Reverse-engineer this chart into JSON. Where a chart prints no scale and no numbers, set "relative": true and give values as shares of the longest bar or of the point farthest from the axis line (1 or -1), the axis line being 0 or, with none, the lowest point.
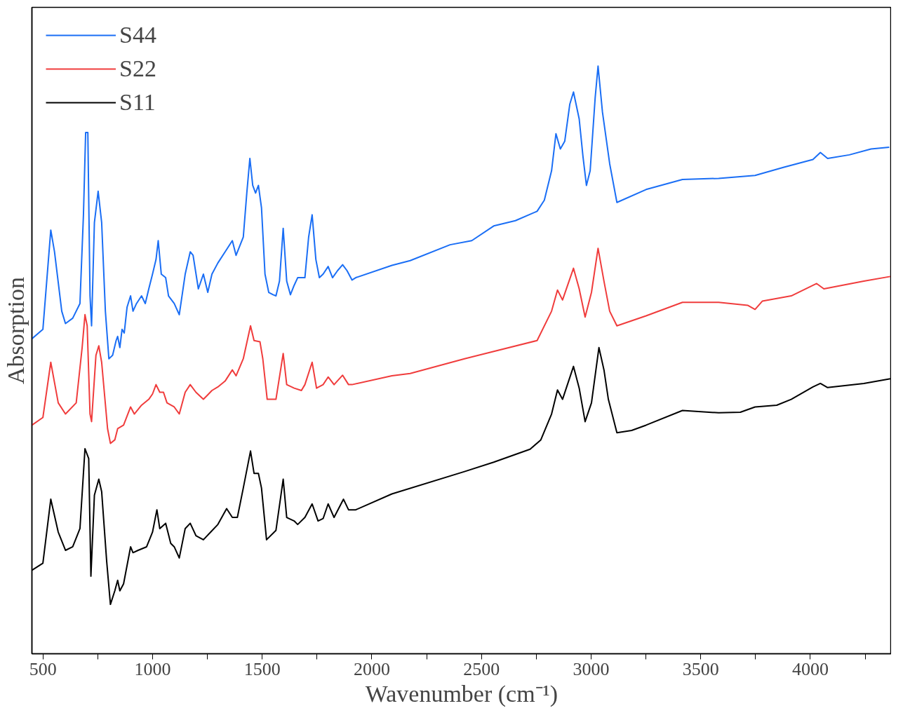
{
  "chart_data": {
    "type": "line",
    "xlabel": "Wavenumber (cm⁻¹)",
    "ylabel": "Absorption",
    "relative": true,
    "legend": "top left",
    "grid": false,
    "xlim": [
      450,
      4370
    ],
    "xticks": [
      500,
      {
        "value": 750,
        "label": null
      },
      1000,
      {
        "value": 1250,
        "label": null
      },
      1500,
      {
        "value": 1750,
        "label": null
      },
      2000,
      {
        "value": 2250,
        "label": null
      },
      2500,
      {
        "value": 2750,
        "label": null
      },
      3000,
      {
        "value": 3250,
        "label": null
      },
      3500,
      {
        "value": 3750,
        "label": null
      },
      4000,
      {
        "value": 4250,
        "label": null
      }
    ],
    "series": [
      {
        "name": "S44",
        "color": "#1a6ef5",
        "x": [
          450,
          500,
          536,
          553,
          586,
          603,
          636,
          669,
          685,
          695,
          705,
          715,
          722,
          735,
          752,
          768,
          785,
          801,
          818,
          834,
          841,
          851,
          861,
          871,
          884,
          900,
          911,
          927,
          950,
          967,
          983,
          1000,
          1016,
          1026,
          1040,
          1060,
          1073,
          1099,
          1122,
          1149,
          1172,
          1185,
          1209,
          1232,
          1252,
          1271,
          1298,
          1331,
          1364,
          1381,
          1414,
          1430,
          1444,
          1457,
          1470,
          1483,
          1497,
          1513,
          1530,
          1550,
          1563,
          1579,
          1596,
          1612,
          1629,
          1646,
          1662,
          1695,
          1712,
          1728,
          1745,
          1761,
          1778,
          1801,
          1821,
          1844,
          1867,
          1887,
          1910,
          1927,
          2092,
          2175,
          2357,
          2456,
          2556,
          2655,
          2754,
          2787,
          2820,
          2840,
          2860,
          2880,
          2903,
          2920,
          2946,
          2963,
          2979,
          2996,
          3019,
          3032,
          3052,
          3085,
          3118,
          3251,
          3417,
          3582,
          3748,
          3880,
          4012,
          4046,
          4079,
          4178,
          4277,
          4360
        ],
        "values": [
          0.536,
          0.552,
          0.721,
          0.684,
          0.583,
          0.562,
          0.571,
          0.596,
          0.747,
          0.887,
          0.887,
          0.609,
          0.558,
          0.734,
          0.787,
          0.734,
          0.583,
          0.502,
          0.508,
          0.533,
          0.54,
          0.521,
          0.552,
          0.546,
          0.59,
          0.609,
          0.583,
          0.596,
          0.609,
          0.596,
          0.621,
          0.646,
          0.671,
          0.703,
          0.646,
          0.64,
          0.609,
          0.596,
          0.577,
          0.646,
          0.684,
          0.678,
          0.621,
          0.646,
          0.615,
          0.646,
          0.665,
          0.684,
          0.703,
          0.678,
          0.709,
          0.784,
          0.843,
          0.797,
          0.784,
          0.797,
          0.759,
          0.646,
          0.615,
          0.611,
          0.609,
          0.634,
          0.724,
          0.634,
          0.611,
          0.627,
          0.64,
          0.64,
          0.709,
          0.747,
          0.671,
          0.64,
          0.646,
          0.659,
          0.64,
          0.652,
          0.662,
          0.652,
          0.636,
          0.64,
          0.661,
          0.669,
          0.696,
          0.703,
          0.728,
          0.737,
          0.753,
          0.772,
          0.822,
          0.885,
          0.859,
          0.872,
          0.935,
          0.956,
          0.91,
          0.847,
          0.797,
          0.822,
          0.947,
          1.0,
          0.922,
          0.834,
          0.768,
          0.79,
          0.807,
          0.809,
          0.814,
          0.828,
          0.841,
          0.853,
          0.843,
          0.849,
          0.859,
          0.862
        ]
      },
      {
        "name": "S22",
        "color": "#f03c3c",
        "x": [
          450,
          500,
          536,
          570,
          603,
          652,
          679,
          692,
          702,
          715,
          722,
          742,
          755,
          768,
          795,
          808,
          828,
          841,
          868,
          900,
          917,
          950,
          983,
          1000,
          1016,
          1033,
          1050,
          1066,
          1099,
          1122,
          1149,
          1172,
          1198,
          1232,
          1248,
          1271,
          1298,
          1331,
          1364,
          1381,
          1414,
          1447,
          1463,
          1490,
          1503,
          1523,
          1563,
          1596,
          1612,
          1646,
          1679,
          1695,
          1728,
          1748,
          1778,
          1801,
          1828,
          1867,
          1894,
          1910,
          2092,
          2175,
          2423,
          2754,
          2820,
          2847,
          2870,
          2920,
          2946,
          2973,
          3002,
          3032,
          3059,
          3085,
          3118,
          3251,
          3417,
          3582,
          3714,
          3748,
          3781,
          3913,
          4029,
          4062,
          4244,
          4365
        ],
        "values": [
          0.389,
          0.402,
          0.496,
          0.427,
          0.408,
          0.427,
          0.521,
          0.577,
          0.558,
          0.408,
          0.395,
          0.508,
          0.524,
          0.496,
          0.383,
          0.358,
          0.364,
          0.383,
          0.389,
          0.42,
          0.408,
          0.423,
          0.433,
          0.442,
          0.458,
          0.445,
          0.445,
          0.427,
          0.42,
          0.408,
          0.445,
          0.458,
          0.445,
          0.433,
          0.439,
          0.448,
          0.454,
          0.464,
          0.483,
          0.473,
          0.502,
          0.558,
          0.533,
          0.531,
          0.502,
          0.433,
          0.433,
          0.511,
          0.458,
          0.452,
          0.448,
          0.458,
          0.496,
          0.452,
          0.458,
          0.471,
          0.458,
          0.474,
          0.458,
          0.458,
          0.473,
          0.477,
          0.502,
          0.533,
          0.583,
          0.619,
          0.602,
          0.656,
          0.621,
          0.573,
          0.615,
          0.69,
          0.634,
          0.583,
          0.558,
          0.575,
          0.598,
          0.598,
          0.593,
          0.586,
          0.6,
          0.609,
          0.63,
          0.621,
          0.634,
          0.642
        ]
      },
      {
        "name": "S11",
        "color": "#000000",
        "x": [
          450,
          500,
          536,
          570,
          603,
          636,
          669,
          692,
          709,
          719,
          735,
          755,
          768,
          791,
          808,
          828,
          841,
          851,
          868,
          900,
          911,
          934,
          973,
          1000,
          1020,
          1033,
          1060,
          1083,
          1099,
          1122,
          1149,
          1172,
          1198,
          1232,
          1265,
          1298,
          1338,
          1364,
          1387,
          1414,
          1447,
          1463,
          1483,
          1497,
          1520,
          1563,
          1596,
          1612,
          1646,
          1662,
          1695,
          1728,
          1755,
          1778,
          1801,
          1828,
          1871,
          1894,
          1927,
          2092,
          2423,
          2556,
          2722,
          2771,
          2820,
          2847,
          2870,
          2920,
          2946,
          2973,
          3002,
          3036,
          3059,
          3079,
          3118,
          3185,
          3251,
          3417,
          3582,
          3681,
          3748,
          3847,
          3913,
          4012,
          4046,
          4079,
          4244,
          4365
        ],
        "values": [
          0.142,
          0.154,
          0.263,
          0.207,
          0.176,
          0.182,
          0.213,
          0.349,
          0.332,
          0.132,
          0.27,
          0.297,
          0.276,
          0.157,
          0.084,
          0.107,
          0.125,
          0.107,
          0.119,
          0.182,
          0.172,
          0.176,
          0.182,
          0.207,
          0.245,
          0.213,
          0.222,
          0.188,
          0.182,
          0.163,
          0.213,
          0.222,
          0.201,
          0.194,
          0.207,
          0.22,
          0.247,
          0.232,
          0.232,
          0.282,
          0.345,
          0.307,
          0.307,
          0.282,
          0.194,
          0.21,
          0.297,
          0.232,
          0.226,
          0.22,
          0.232,
          0.255,
          0.226,
          0.23,
          0.255,
          0.232,
          0.263,
          0.245,
          0.245,
          0.272,
          0.31,
          0.326,
          0.348,
          0.364,
          0.408,
          0.449,
          0.433,
          0.489,
          0.452,
          0.395,
          0.427,
          0.521,
          0.483,
          0.433,
          0.376,
          0.38,
          0.389,
          0.414,
          0.41,
          0.411,
          0.42,
          0.423,
          0.433,
          0.454,
          0.46,
          0.453,
          0.46,
          0.468
        ]
      }
    ]
  }
}
